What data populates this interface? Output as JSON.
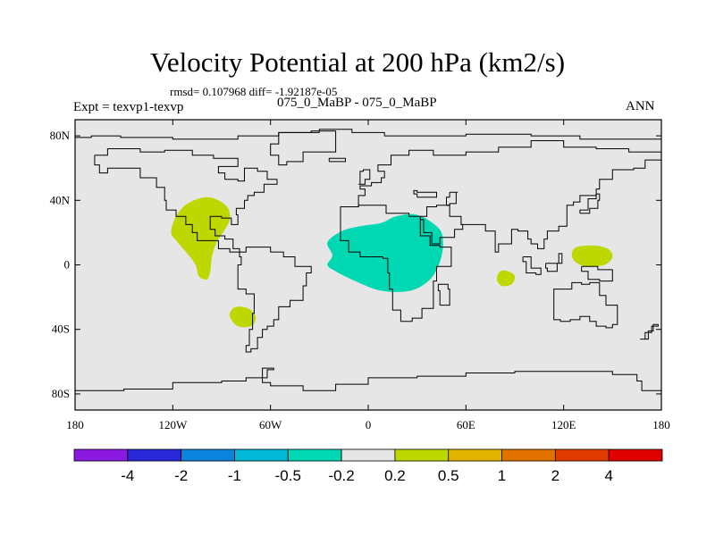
{
  "title": "Velocity Potential at 200 hPa (km2/s)",
  "stats_line": "rmsd= 0.107968 diff= -1.92187e-05",
  "experiment": "Expt = texvp1-texvp",
  "cases": "075_0_MaBP - 075_0_MaBP",
  "season": "ANN",
  "map": {
    "projection": "cylindrical-equidistant",
    "lon_range": [
      -180,
      180
    ],
    "lat_range": [
      -90,
      90
    ],
    "background_color": "#e6e6e6",
    "x_ticks": [
      {
        "lon": -180,
        "label": "180"
      },
      {
        "lon": -120,
        "label": "120W"
      },
      {
        "lon": -60,
        "label": "60W"
      },
      {
        "lon": 0,
        "label": "0"
      },
      {
        "lon": 60,
        "label": "60E"
      },
      {
        "lon": 120,
        "label": "120E"
      },
      {
        "lon": 180,
        "label": "180"
      }
    ],
    "y_ticks": [
      {
        "lat": 80,
        "label": "80N"
      },
      {
        "lat": 40,
        "label": "40N"
      },
      {
        "lat": 0,
        "label": "0"
      },
      {
        "lat": -40,
        "label": "40S"
      },
      {
        "lat": -80,
        "label": "80S"
      }
    ],
    "anomalies": [
      {
        "name": "positive-anomaly-east-pacific",
        "bin": "0.2 to 0.5",
        "color": "#bcd800",
        "polygon": [
          [
            -100,
            42
          ],
          [
            -92,
            40
          ],
          [
            -86,
            35
          ],
          [
            -85,
            28
          ],
          [
            -88,
            22
          ],
          [
            -93,
            14
          ],
          [
            -96,
            5
          ],
          [
            -97,
            -4
          ],
          [
            -99,
            -9
          ],
          [
            -104,
            -7
          ],
          [
            -106,
            0
          ],
          [
            -111,
            7
          ],
          [
            -117,
            14
          ],
          [
            -121,
            20
          ],
          [
            -118,
            30
          ],
          [
            -111,
            38
          ]
        ]
      },
      {
        "name": "positive-anomaly-south-pacific",
        "bin": "0.2 to 0.5",
        "color": "#bcd800",
        "polygon": [
          [
            -78,
            -26
          ],
          [
            -72,
            -28
          ],
          [
            -69,
            -33
          ],
          [
            -72,
            -38
          ],
          [
            -80,
            -38
          ],
          [
            -85,
            -32
          ],
          [
            -83,
            -27
          ]
        ]
      },
      {
        "name": "negative-anomaly-africa",
        "bin": "-0.5 to -0.2",
        "color": "#00d8b4",
        "polygon": [
          [
            -25,
            14
          ],
          [
            -16,
            21
          ],
          [
            -5,
            24
          ],
          [
            8,
            26
          ],
          [
            17,
            30
          ],
          [
            30,
            31
          ],
          [
            43,
            23
          ],
          [
            46,
            14
          ],
          [
            44,
            2
          ],
          [
            38,
            -9
          ],
          [
            26,
            -16
          ],
          [
            8,
            -16
          ],
          [
            -8,
            -10
          ],
          [
            -20,
            -4
          ],
          [
            -25,
            0
          ],
          [
            -22,
            6
          ]
        ]
      },
      {
        "name": "positive-anomaly-indian-ocean",
        "bin": "0.2 to 0.5",
        "color": "#bcd800",
        "polygon": [
          [
            81,
            -4
          ],
          [
            86,
            -4
          ],
          [
            90,
            -7
          ],
          [
            88,
            -12
          ],
          [
            82,
            -13
          ],
          [
            79,
            -9
          ]
        ]
      },
      {
        "name": "positive-anomaly-west-pacific",
        "bin": "0.2 to 0.5",
        "color": "#bcd800",
        "polygon": [
          [
            128,
            11
          ],
          [
            138,
            12
          ],
          [
            147,
            10
          ],
          [
            150,
            5
          ],
          [
            145,
            0
          ],
          [
            134,
            -1
          ],
          [
            127,
            2
          ],
          [
            125,
            7
          ]
        ]
      }
    ],
    "coastlines": [
      [
        [
          -180,
          79
        ],
        [
          -170,
          80
        ],
        [
          -152,
          79
        ],
        [
          -120,
          78
        ],
        [
          -80,
          80
        ],
        [
          -55,
          82
        ],
        [
          -30,
          84
        ],
        [
          -10,
          82
        ],
        [
          10,
          80
        ],
        [
          30,
          80
        ],
        [
          60,
          81
        ],
        [
          100,
          80
        ],
        [
          130,
          78
        ],
        [
          160,
          78
        ],
        [
          180,
          79
        ]
      ],
      [
        [
          -168,
          68
        ],
        [
          -160,
          72
        ],
        [
          -140,
          70
        ],
        [
          -125,
          71
        ],
        [
          -108,
          68
        ],
        [
          -95,
          66
        ],
        [
          -85,
          66
        ],
        [
          -80,
          61
        ],
        [
          -92,
          57
        ],
        [
          -88,
          53
        ],
        [
          -80,
          52
        ],
        [
          -76,
          60
        ],
        [
          -68,
          58
        ],
        [
          -62,
          53
        ],
        [
          -56,
          50
        ],
        [
          -64,
          45
        ],
        [
          -70,
          43
        ],
        [
          -74,
          40
        ],
        [
          -76,
          35
        ],
        [
          -81,
          31
        ],
        [
          -80,
          25
        ],
        [
          -84,
          29
        ],
        [
          -90,
          30
        ],
        [
          -97,
          27
        ],
        [
          -97,
          22
        ],
        [
          -94,
          18
        ],
        [
          -88,
          16
        ],
        [
          -83,
          10
        ],
        [
          -79,
          8
        ]
      ],
      [
        [
          -79,
          8
        ],
        [
          -85,
          10
        ],
        [
          -92,
          15
        ],
        [
          -105,
          20
        ],
        [
          -108,
          25
        ],
        [
          -112,
          30
        ],
        [
          -118,
          34
        ],
        [
          -124,
          40
        ],
        [
          -125,
          48
        ],
        [
          -130,
          54
        ],
        [
          -140,
          60
        ],
        [
          -150,
          60
        ],
        [
          -160,
          57
        ],
        [
          -165,
          62
        ],
        [
          -168,
          68
        ]
      ],
      [
        [
          -55,
          82
        ],
        [
          -35,
          83
        ],
        [
          -20,
          78
        ],
        [
          -20,
          70
        ],
        [
          -40,
          64
        ],
        [
          -50,
          62
        ],
        [
          -55,
          68
        ],
        [
          -60,
          75
        ],
        [
          -55,
          82
        ]
      ],
      [
        [
          -79,
          8
        ],
        [
          -75,
          11
        ],
        [
          -65,
          11
        ],
        [
          -60,
          8
        ],
        [
          -52,
          5
        ],
        [
          -45,
          -1
        ],
        [
          -35,
          -5
        ],
        [
          -38,
          -13
        ],
        [
          -40,
          -22
        ],
        [
          -48,
          -26
        ],
        [
          -55,
          -34
        ],
        [
          -58,
          -38
        ],
        [
          -62,
          -40
        ],
        [
          -65,
          -45
        ],
        [
          -68,
          -52
        ],
        [
          -72,
          -54
        ],
        [
          -75,
          -50
        ],
        [
          -73,
          -40
        ],
        [
          -71,
          -30
        ],
        [
          -70,
          -18
        ],
        [
          -75,
          -15
        ],
        [
          -80,
          -6
        ],
        [
          -80,
          0
        ],
        [
          -78,
          5
        ],
        [
          -79,
          8
        ]
      ],
      [
        [
          -10,
          36
        ],
        [
          -6,
          43
        ],
        [
          -2,
          47
        ],
        [
          -5,
          49
        ],
        [
          2,
          51
        ],
        [
          8,
          54
        ],
        [
          10,
          58
        ],
        [
          6,
          62
        ],
        [
          14,
          68
        ],
        [
          25,
          71
        ],
        [
          40,
          68
        ],
        [
          60,
          70
        ],
        [
          80,
          73
        ],
        [
          100,
          77
        ],
        [
          120,
          73
        ],
        [
          140,
          72
        ],
        [
          160,
          70
        ],
        [
          180,
          68
        ]
      ],
      [
        [
          -10,
          36
        ],
        [
          -17,
          21
        ],
        [
          -17,
          15
        ],
        [
          -12,
          8
        ],
        [
          -5,
          5
        ],
        [
          5,
          5
        ],
        [
          9,
          4
        ],
        [
          12,
          -5
        ],
        [
          13,
          -15
        ],
        [
          15,
          -28
        ],
        [
          20,
          -35
        ],
        [
          27,
          -33
        ],
        [
          33,
          -27
        ],
        [
          40,
          -16
        ],
        [
          40,
          -10
        ],
        [
          42,
          -1
        ],
        [
          51,
          11
        ],
        [
          44,
          12
        ],
        [
          38,
          18
        ],
        [
          32,
          30
        ],
        [
          25,
          32
        ],
        [
          11,
          37
        ],
        [
          3,
          37
        ],
        [
          -6,
          36
        ],
        [
          -10,
          36
        ]
      ],
      [
        [
          32,
          30
        ],
        [
          36,
          36
        ],
        [
          42,
          37
        ],
        [
          50,
          30
        ],
        [
          57,
          25
        ],
        [
          58,
          22
        ],
        [
          53,
          17
        ],
        [
          44,
          13
        ],
        [
          39,
          20
        ],
        [
          34,
          28
        ],
        [
          32,
          30
        ]
      ],
      [
        [
          57,
          25
        ],
        [
          67,
          25
        ],
        [
          72,
          21
        ],
        [
          78,
          8
        ],
        [
          80,
          13
        ],
        [
          88,
          22
        ],
        [
          92,
          21
        ],
        [
          98,
          16
        ],
        [
          100,
          13
        ],
        [
          104,
          10
        ],
        [
          108,
          16
        ],
        [
          110,
          21
        ],
        [
          117,
          24
        ],
        [
          122,
          30
        ],
        [
          122,
          37
        ],
        [
          126,
          39
        ],
        [
          130,
          43
        ],
        [
          140,
          47
        ],
        [
          142,
          53
        ],
        [
          150,
          59
        ],
        [
          163,
          60
        ],
        [
          170,
          65
        ],
        [
          180,
          68
        ]
      ],
      [
        [
          30,
          42
        ],
        [
          42,
          42
        ],
        [
          42,
          45
        ],
        [
          30,
          46
        ],
        [
          28,
          44
        ],
        [
          30,
          42
        ]
      ],
      [
        [
          50,
          45
        ],
        [
          55,
          45
        ],
        [
          54,
          38
        ],
        [
          50,
          37
        ],
        [
          48,
          42
        ],
        [
          50,
          45
        ]
      ],
      [
        [
          -6,
          50
        ],
        [
          -5,
          58
        ],
        [
          -3,
          59
        ],
        [
          1,
          53
        ],
        [
          -2,
          50
        ],
        [
          -6,
          50
        ]
      ],
      [
        [
          -24,
          64
        ],
        [
          -14,
          65
        ],
        [
          -14,
          66
        ],
        [
          -24,
          66
        ],
        [
          -24,
          64
        ]
      ],
      [
        [
          130,
          32
        ],
        [
          136,
          35
        ],
        [
          141,
          40
        ],
        [
          142,
          44
        ],
        [
          140,
          41
        ],
        [
          135,
          34
        ],
        [
          130,
          32
        ]
      ],
      [
        [
          44,
          -25
        ],
        [
          50,
          -15
        ],
        [
          49,
          -12
        ],
        [
          43,
          -16
        ],
        [
          44,
          -25
        ]
      ],
      [
        [
          95,
          5
        ],
        [
          100,
          -2
        ],
        [
          106,
          -6
        ],
        [
          103,
          -5
        ],
        [
          97,
          2
        ],
        [
          95,
          5
        ]
      ],
      [
        [
          109,
          1
        ],
        [
          117,
          7
        ],
        [
          119,
          1
        ],
        [
          116,
          -4
        ],
        [
          110,
          -2
        ],
        [
          109,
          1
        ]
      ],
      [
        [
          131,
          -1
        ],
        [
          141,
          -3
        ],
        [
          150,
          -10
        ],
        [
          142,
          -9
        ],
        [
          135,
          -4
        ],
        [
          131,
          -1
        ]
      ],
      [
        [
          114,
          -22
        ],
        [
          114,
          -34
        ],
        [
          118,
          -35
        ],
        [
          124,
          -34
        ],
        [
          130,
          -32
        ],
        [
          136,
          -35
        ],
        [
          140,
          -38
        ],
        [
          146,
          -39
        ],
        [
          150,
          -37
        ],
        [
          153,
          -30
        ],
        [
          153,
          -25
        ],
        [
          146,
          -19
        ],
        [
          142,
          -11
        ],
        [
          136,
          -12
        ],
        [
          131,
          -11
        ],
        [
          125,
          -15
        ],
        [
          114,
          -22
        ]
      ],
      [
        [
          167,
          -46
        ],
        [
          172,
          -41
        ],
        [
          175,
          -37
        ],
        [
          178,
          -38
        ],
        [
          174,
          -42
        ],
        [
          170,
          -46
        ],
        [
          167,
          -46
        ]
      ],
      [
        [
          -180,
          -78
        ],
        [
          -150,
          -77
        ],
        [
          -120,
          -73
        ],
        [
          -90,
          -72
        ],
        [
          -75,
          -70
        ],
        [
          -62,
          -65
        ],
        [
          -58,
          -64
        ],
        [
          -65,
          -73
        ],
        [
          -60,
          -75
        ],
        [
          -40,
          -78
        ],
        [
          -20,
          -74
        ],
        [
          0,
          -70
        ],
        [
          30,
          -69
        ],
        [
          60,
          -67
        ],
        [
          90,
          -66
        ],
        [
          120,
          -66
        ],
        [
          150,
          -68
        ],
        [
          165,
          -72
        ],
        [
          168,
          -78
        ],
        [
          180,
          -78
        ]
      ]
    ]
  },
  "colorbar": {
    "boundary_labels": [
      "-4",
      "-2",
      "-1",
      "-0.5",
      "-0.2",
      "0.2",
      "0.5",
      "1",
      "2",
      "4"
    ],
    "colors": [
      "#8c19e0",
      "#2828d8",
      "#0a84dc",
      "#04b8d8",
      "#00d8b4",
      "#e6e6e6",
      "#bcd800",
      "#e2b400",
      "#e27200",
      "#e03c00",
      "#e00000"
    ]
  }
}
